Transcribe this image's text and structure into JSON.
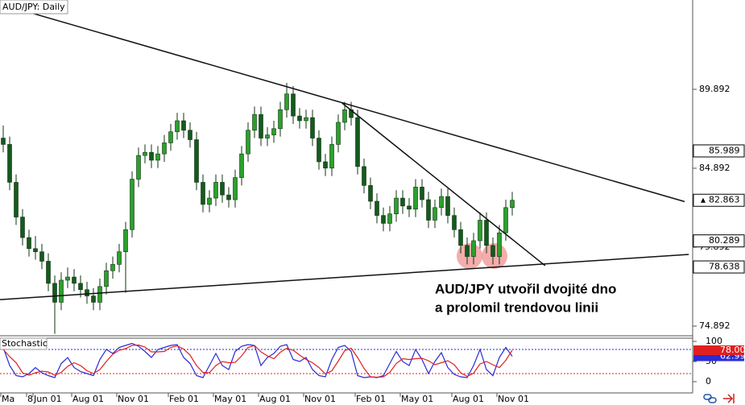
{
  "chart_data": [
    {
      "type": "candlestick",
      "title": "AUD/JPY: Daily",
      "categories": [
        "Ma",
        null,
        null,
        null,
        "8",
        "Jun 01",
        null,
        null,
        null,
        null,
        null,
        "Aug 01",
        null,
        null,
        null,
        null,
        null,
        null,
        "Nov 01",
        null,
        null,
        null,
        null,
        null,
        null,
        null,
        "Feb 01",
        null,
        null,
        null,
        null,
        null,
        null,
        "May 01",
        null,
        null,
        null,
        null,
        null,
        null,
        "Aug 01",
        null,
        null,
        null,
        null,
        null,
        null,
        "Nov 01",
        null,
        null,
        null,
        null,
        null,
        null,
        null,
        "Feb 01",
        null,
        null,
        null,
        null,
        null,
        null,
        "May 01",
        null,
        null,
        null,
        null,
        null,
        null,
        null,
        "Aug 01",
        null,
        null,
        null,
        null,
        null,
        null,
        "Nov 01",
        null,
        null
      ],
      "open": [
        86.8,
        86.4,
        84.0,
        81.8,
        80.5,
        79.8,
        79.6,
        79.0,
        77.6,
        76.4,
        77.8,
        78.0,
        77.6,
        77.2,
        76.8,
        76.4,
        77.4,
        78.4,
        78.8,
        79.6,
        81.0,
        84.2,
        85.7,
        85.9,
        85.4,
        85.8,
        86.5,
        87.2,
        87.9,
        87.3,
        86.7,
        84.0,
        82.6,
        83.0,
        84.0,
        83.2,
        82.9,
        84.3,
        85.8,
        87.3,
        88.3,
        86.8,
        87.0,
        87.4,
        88.6,
        89.6,
        88.2,
        87.9,
        88.1,
        86.8,
        85.3,
        84.9,
        86.4,
        87.8,
        88.6,
        88.1,
        85.0,
        83.8,
        82.8,
        81.9,
        81.4,
        82.0,
        83.0,
        82.5,
        82.3,
        83.7,
        82.9,
        81.6,
        82.4,
        83.1,
        81.9,
        81.0,
        80.0,
        79.3,
        80.3,
        81.6,
        80.0,
        79.3,
        80.8,
        82.4
      ],
      "high": [
        87.6,
        86.9,
        84.5,
        82.3,
        81.0,
        80.6,
        80.1,
        79.5,
        78.1,
        78.3,
        78.6,
        78.5,
        78.1,
        77.7,
        77.3,
        77.9,
        78.9,
        79.3,
        80.1,
        81.5,
        84.7,
        86.2,
        86.4,
        86.4,
        86.3,
        87.0,
        87.7,
        88.4,
        88.4,
        87.8,
        87.2,
        84.5,
        83.5,
        84.5,
        84.5,
        83.7,
        84.8,
        86.3,
        87.8,
        88.8,
        88.8,
        87.5,
        87.9,
        89.1,
        90.3,
        90.1,
        88.7,
        88.6,
        88.6,
        87.3,
        85.8,
        86.9,
        88.3,
        89.1,
        89.1,
        88.6,
        85.5,
        84.3,
        83.3,
        82.4,
        82.5,
        83.5,
        83.5,
        83.0,
        84.2,
        84.2,
        83.4,
        82.9,
        83.6,
        83.6,
        82.4,
        81.5,
        80.5,
        80.8,
        82.1,
        82.1,
        80.5,
        81.3,
        82.9,
        83.4
      ],
      "low": [
        85.9,
        83.5,
        81.3,
        80.0,
        79.3,
        79.1,
        78.5,
        77.1,
        74.4,
        75.9,
        77.3,
        77.1,
        76.7,
        76.3,
        75.9,
        75.9,
        76.9,
        77.9,
        78.3,
        77.0,
        80.5,
        83.7,
        85.2,
        84.9,
        84.9,
        85.3,
        86.0,
        86.7,
        86.8,
        86.2,
        83.5,
        82.1,
        82.1,
        82.5,
        82.7,
        82.4,
        82.4,
        83.8,
        85.3,
        86.8,
        86.3,
        86.3,
        86.5,
        86.9,
        88.1,
        87.7,
        87.4,
        87.4,
        86.3,
        84.8,
        84.4,
        84.4,
        85.9,
        87.3,
        87.6,
        84.5,
        83.3,
        82.3,
        81.4,
        80.9,
        80.9,
        81.5,
        82.0,
        81.8,
        81.8,
        82.4,
        81.1,
        81.1,
        81.9,
        81.4,
        80.5,
        79.5,
        78.8,
        78.8,
        79.8,
        79.5,
        78.8,
        78.8,
        80.3,
        81.9
      ],
      "close": [
        86.4,
        84.0,
        81.8,
        80.5,
        79.8,
        79.6,
        79.0,
        77.6,
        76.4,
        77.8,
        78.0,
        77.6,
        77.2,
        76.8,
        76.4,
        77.4,
        78.4,
        78.8,
        79.6,
        81.0,
        84.2,
        85.7,
        85.9,
        85.4,
        85.8,
        86.5,
        87.2,
        87.9,
        87.3,
        86.7,
        84.0,
        82.6,
        83.0,
        84.0,
        83.2,
        82.9,
        84.3,
        85.8,
        87.3,
        88.3,
        86.8,
        87.0,
        87.4,
        88.6,
        89.6,
        88.2,
        87.9,
        88.1,
        86.8,
        85.3,
        84.9,
        86.4,
        87.8,
        88.6,
        88.1,
        85.0,
        83.8,
        82.8,
        81.9,
        81.4,
        82.0,
        83.0,
        82.5,
        82.3,
        83.7,
        82.9,
        81.6,
        82.4,
        83.1,
        81.9,
        81.0,
        80.0,
        79.3,
        80.3,
        81.6,
        80.0,
        79.3,
        80.8,
        82.4,
        82.863
      ],
      "up_color": "#2ca02c",
      "down_color": "#145a1e",
      "ylim": [
        74.28,
        95.55
      ],
      "yticks": [
        89.892,
        84.892,
        79.892,
        74.892
      ],
      "price_labels": [
        85.989,
        80.289,
        78.638
      ],
      "current_price": 82.863,
      "trendlines": [
        {
          "x": [
            -0.5,
            105.75
          ],
          "y": [
            95.3,
            82.78
          ]
        },
        {
          "x": [
            52.6,
            84.1
          ],
          "y": [
            89.02,
            78.72
          ]
        },
        {
          "x": [
            -0.5,
            106.4
          ],
          "y": [
            76.57,
            79.43
          ]
        }
      ],
      "annotations": [
        "AUD/JPY utvořil dvojité dno",
        "a prolomil trendovou linii"
      ]
    },
    {
      "type": "line",
      "title": "Stochastic",
      "series": [
        {
          "color": "#2b2bd6",
          "values": [
            85,
            40,
            15,
            12,
            20,
            35,
            22,
            15,
            10,
            45,
            60,
            35,
            25,
            20,
            15,
            55,
            80,
            70,
            85,
            90,
            95,
            88,
            75,
            60,
            80,
            85,
            90,
            92,
            60,
            45,
            15,
            10,
            40,
            70,
            40,
            30,
            75,
            88,
            92,
            90,
            40,
            60,
            70,
            88,
            92,
            55,
            50,
            60,
            30,
            15,
            12,
            55,
            85,
            90,
            75,
            15,
            10,
            12,
            10,
            15,
            45,
            75,
            50,
            40,
            80,
            55,
            20,
            50,
            72,
            35,
            18,
            12,
            10,
            40,
            80,
            30,
            15,
            60,
            85,
            62.99
          ]
        },
        {
          "color": "#e02020",
          "values": [
            80,
            62,
            47,
            22,
            16,
            22,
            26,
            24,
            16,
            23,
            38,
            47,
            40,
            27,
            20,
            30,
            50,
            68,
            78,
            82,
            90,
            91,
            86,
            74,
            74,
            75,
            85,
            89,
            81,
            66,
            40,
            23,
            22,
            40,
            50,
            47,
            48,
            64,
            85,
            90,
            74,
            64,
            57,
            73,
            83,
            78,
            66,
            55,
            47,
            35,
            19,
            27,
            51,
            77,
            83,
            60,
            33,
            12,
            11,
            12,
            23,
            45,
            57,
            55,
            57,
            58,
            52,
            42,
            47,
            52,
            42,
            22,
            13,
            21,
            44,
            50,
            42,
            35,
            53,
            78.0
          ],
          "value_labels": [
            null,
            null,
            null,
            null,
            null,
            null,
            null,
            null,
            null,
            null,
            null,
            null,
            null,
            null,
            null,
            null,
            null,
            null,
            null,
            null,
            null,
            null,
            null,
            null,
            null,
            null,
            null,
            null,
            null,
            null,
            null,
            null,
            null,
            null,
            null,
            null,
            null,
            null,
            null,
            null,
            null,
            null,
            null,
            null,
            null,
            null,
            null,
            null,
            null,
            null,
            null,
            null,
            null,
            null,
            null,
            null,
            null,
            null,
            null,
            null,
            null,
            null,
            null,
            null,
            null,
            null,
            null,
            null,
            null,
            null,
            null,
            null,
            null,
            null,
            null,
            null,
            null,
            null,
            null,
            "78.00"
          ]
        }
      ],
      "ylim": [
        0,
        100
      ],
      "yticks": [
        100,
        50,
        0
      ],
      "levels": [
        80,
        20
      ]
    }
  ]
}
